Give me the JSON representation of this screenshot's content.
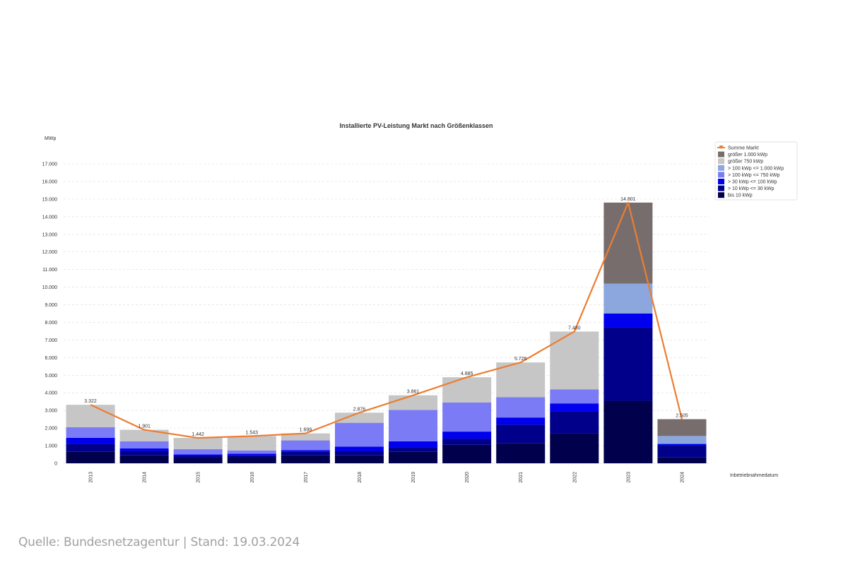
{
  "chart_data": {
    "type": "bar",
    "title": "Installierte PV-Leistung Markt nach Größenklassen",
    "ylabel": "MWp",
    "xlabel": "Inbetriebnahmedatum",
    "ylim": [
      0,
      17000
    ],
    "grid": true,
    "legend_position": "top-right",
    "y_ticks": [
      "0",
      "1.000",
      "2.000",
      "3.000",
      "4.000",
      "5.000",
      "6.000",
      "7.000",
      "8.000",
      "9.000",
      "10.000",
      "11.000",
      "12.000",
      "13.000",
      "14.000",
      "15.000",
      "16.000",
      "17.000"
    ],
    "categories": [
      "2013",
      "2014",
      "2015",
      "2016",
      "2017",
      "2018",
      "2019",
      "2020",
      "2021",
      "2022",
      "2023",
      "2024"
    ],
    "series": [
      {
        "name": "bis 10 kWp",
        "color": "#00004d",
        "values": [
          650,
          450,
          300,
          320,
          450,
          450,
          650,
          1050,
          1150,
          1700,
          3550,
          350
        ]
      },
      {
        "name": "> 10 kWp <= 30 kWp",
        "color": "#00008b",
        "values": [
          450,
          250,
          120,
          130,
          200,
          250,
          250,
          350,
          1050,
          1250,
          4150,
          650
        ]
      },
      {
        "name": "> 30 kWp <= 100 kWp",
        "color": "#0000ee",
        "values": [
          350,
          150,
          80,
          100,
          100,
          250,
          350,
          400,
          400,
          450,
          800,
          100
        ]
      },
      {
        "name": "> 100 kWp <= 750 kWp",
        "color": "#7b7bf5",
        "values": [
          600,
          400,
          300,
          180,
          550,
          1350,
          1780,
          1650,
          1150,
          800,
          0,
          0
        ]
      },
      {
        "name": "> 100 kWp <= 1.000 kWp",
        "color": "#8ba7dd",
        "values": [
          0,
          0,
          0,
          0,
          0,
          0,
          0,
          0,
          0,
          0,
          1700,
          450
        ]
      },
      {
        "name": "größer 750 kWp",
        "color": "#c6c6c6",
        "values": [
          1272,
          651,
          642,
          813,
          399,
          576,
          831,
          1435,
          1976,
          3280,
          0,
          0
        ]
      },
      {
        "name": "größer 1.000 kWp",
        "color": "#786d6d",
        "values": [
          0,
          0,
          0,
          0,
          0,
          0,
          0,
          0,
          0,
          0,
          4601,
          955
        ]
      }
    ],
    "line_series": {
      "name": "Summe Markt",
      "color": "#ed7d31",
      "values": [
        3322,
        1901,
        1442,
        1543,
        1699,
        2876,
        3861,
        4885,
        5726,
        7480,
        14801,
        2505
      ],
      "labels": [
        "3.322",
        "1.901",
        "1.442",
        "1.543",
        "1.699",
        "2.876",
        "3.861",
        "4.885",
        "5.726",
        "7.480",
        "14.801",
        "2.505"
      ]
    },
    "legend_order": [
      "Summe Markt",
      "größer 1.000 kWp",
      "größer 750 kWp",
      "> 100 kWp <= 1.000 kWp",
      "> 100 kWp <= 750 kWp",
      "> 30 kWp <= 100 kWp",
      "> 10 kWp <= 30 kWp",
      "bis 10 kWp"
    ]
  },
  "footer": {
    "source_text": "Quelle: Bundesnetzagentur | Stand: 19.03.2024"
  }
}
